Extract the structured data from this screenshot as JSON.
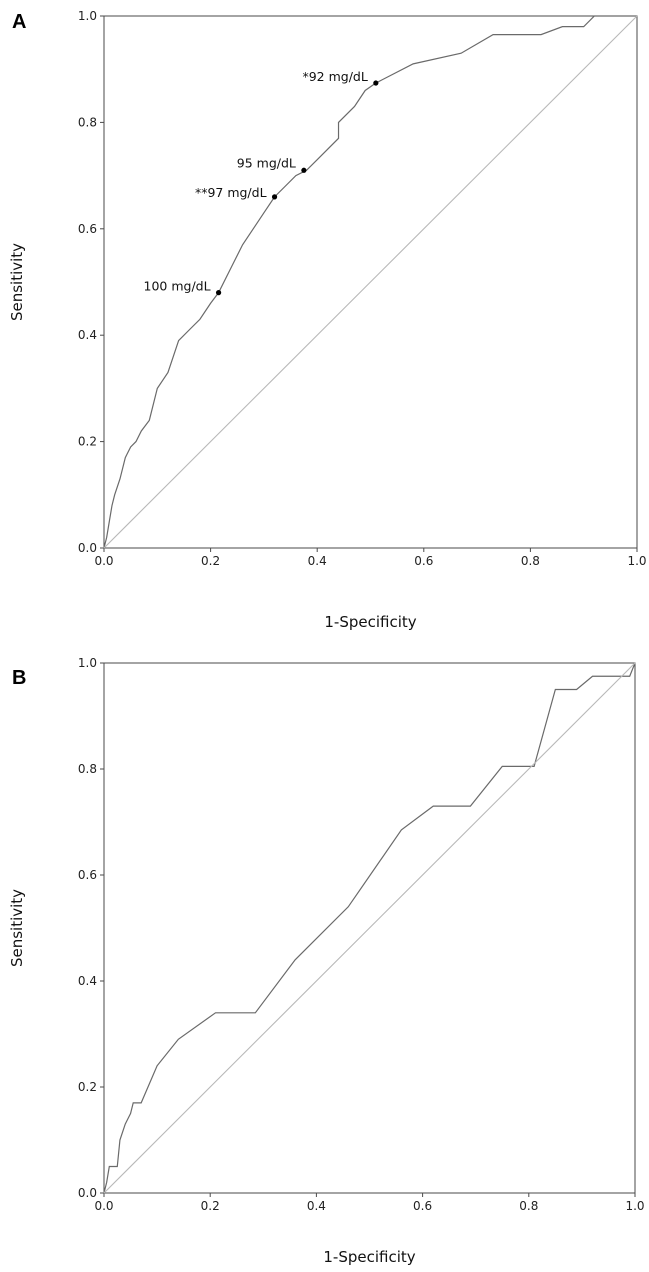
{
  "chart_data": [
    {
      "type": "line",
      "panel_label": "A",
      "title": "",
      "xlabel": "1-Specificity",
      "ylabel": "Sensitivity",
      "xlim": [
        0,
        1
      ],
      "ylim": [
        0,
        1
      ],
      "x_ticks": [
        "0.0",
        "0.2",
        "0.4",
        "0.6",
        "0.8",
        "1.0"
      ],
      "y_ticks": [
        "0.0",
        "0.2",
        "0.4",
        "0.6",
        "0.8",
        "1.0"
      ],
      "grid": false,
      "legend": "none",
      "series": [
        {
          "role": "roc",
          "points": [
            [
              0,
              0
            ],
            [
              0.005,
              0.02
            ],
            [
              0.01,
              0.05
            ],
            [
              0.015,
              0.08
            ],
            [
              0.02,
              0.1
            ],
            [
              0.03,
              0.13
            ],
            [
              0.04,
              0.17
            ],
            [
              0.05,
              0.19
            ],
            [
              0.06,
              0.2
            ],
            [
              0.07,
              0.22
            ],
            [
              0.085,
              0.24
            ],
            [
              0.1,
              0.3
            ],
            [
              0.12,
              0.33
            ],
            [
              0.14,
              0.39
            ],
            [
              0.16,
              0.41
            ],
            [
              0.18,
              0.43
            ],
            [
              0.2,
              0.46
            ],
            [
              0.215,
              0.48
            ],
            [
              0.24,
              0.53
            ],
            [
              0.26,
              0.57
            ],
            [
              0.28,
              0.6
            ],
            [
              0.3,
              0.63
            ],
            [
              0.32,
              0.66
            ],
            [
              0.34,
              0.68
            ],
            [
              0.36,
              0.7
            ],
            [
              0.38,
              0.71
            ],
            [
              0.4,
              0.73
            ],
            [
              0.44,
              0.77
            ],
            [
              0.44,
              0.8
            ],
            [
              0.47,
              0.83
            ],
            [
              0.49,
              0.86
            ],
            [
              0.51,
              0.874
            ],
            [
              0.58,
              0.91
            ],
            [
              0.67,
              0.93
            ],
            [
              0.73,
              0.965
            ],
            [
              0.82,
              0.965
            ],
            [
              0.86,
              0.98
            ],
            [
              0.9,
              0.98
            ],
            [
              0.92,
              1.0
            ],
            [
              1.0,
              1.0
            ]
          ]
        },
        {
          "role": "reference",
          "points": [
            [
              0,
              0
            ],
            [
              1,
              1
            ]
          ]
        }
      ],
      "annotations": [
        {
          "label": "*92 mg/dL",
          "x": 0.51,
          "y": 0.874
        },
        {
          "label": "95 mg/dL",
          "x": 0.375,
          "y": 0.71
        },
        {
          "label": "**97 mg/dL",
          "x": 0.32,
          "y": 0.66
        },
        {
          "label": "100 mg/dL",
          "x": 0.215,
          "y": 0.48
        }
      ]
    },
    {
      "type": "line",
      "panel_label": "B",
      "title": "",
      "xlabel": "1-Specificity",
      "ylabel": "Sensitivity",
      "xlim": [
        0,
        1
      ],
      "ylim": [
        0,
        1
      ],
      "x_ticks": [
        "0.0",
        "0.2",
        "0.4",
        "0.6",
        "0.8",
        "1.0"
      ],
      "y_ticks": [
        "0.0",
        "0.2",
        "0.4",
        "0.6",
        "0.8",
        "1.0"
      ],
      "grid": false,
      "legend": "none",
      "series": [
        {
          "role": "roc",
          "points": [
            [
              0,
              0
            ],
            [
              0.005,
              0.02
            ],
            [
              0.01,
              0.05
            ],
            [
              0.025,
              0.05
            ],
            [
              0.03,
              0.1
            ],
            [
              0.04,
              0.13
            ],
            [
              0.05,
              0.15
            ],
            [
              0.055,
              0.17
            ],
            [
              0.07,
              0.17
            ],
            [
              0.1,
              0.24
            ],
            [
              0.14,
              0.29
            ],
            [
              0.21,
              0.34
            ],
            [
              0.285,
              0.34
            ],
            [
              0.36,
              0.44
            ],
            [
              0.46,
              0.54
            ],
            [
              0.56,
              0.685
            ],
            [
              0.62,
              0.73
            ],
            [
              0.69,
              0.73
            ],
            [
              0.75,
              0.805
            ],
            [
              0.81,
              0.805
            ],
            [
              0.85,
              0.95
            ],
            [
              0.89,
              0.95
            ],
            [
              0.92,
              0.975
            ],
            [
              0.99,
              0.975
            ],
            [
              1.0,
              1.0
            ]
          ]
        },
        {
          "role": "reference",
          "points": [
            [
              0,
              0
            ],
            [
              1,
              1
            ]
          ]
        }
      ],
      "annotations": []
    }
  ]
}
